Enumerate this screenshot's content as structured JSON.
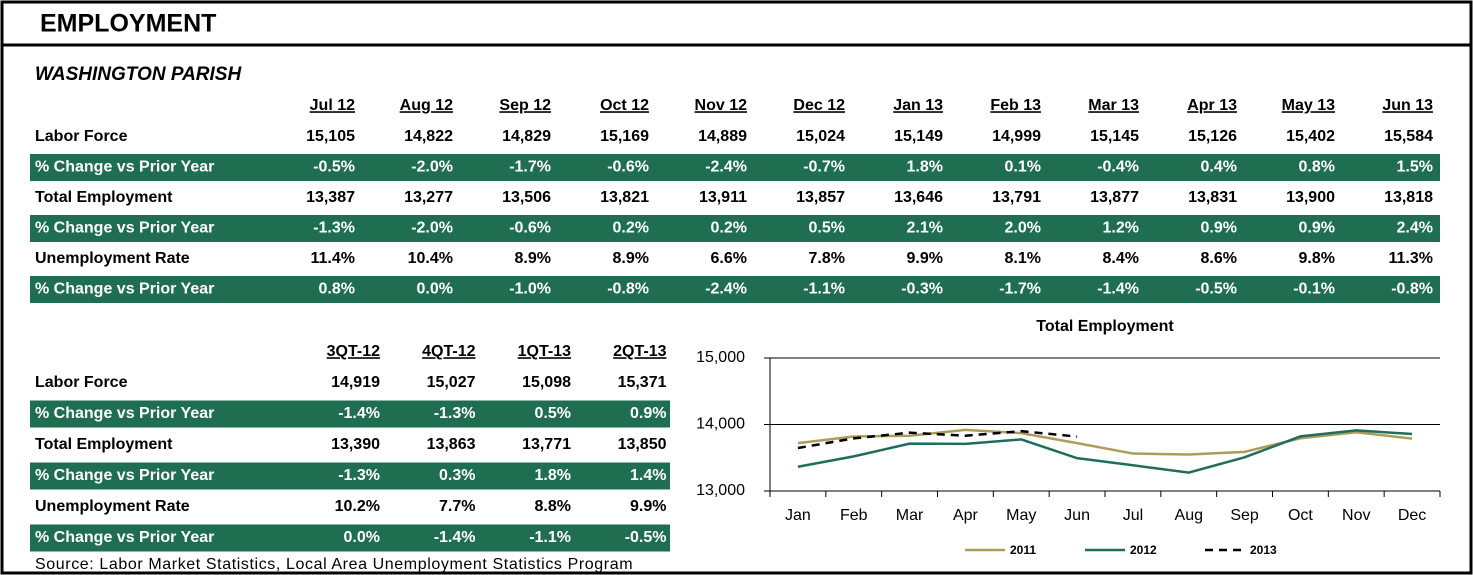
{
  "header": {
    "title": "EMPLOYMENT",
    "subtitle": "WASHINGTON PARISH"
  },
  "monthly_table": {
    "columns": [
      "Jul 12",
      "Aug 12",
      "Sep 12",
      "Oct 12",
      "Nov 12",
      "Dec 12",
      "Jan 13",
      "Feb 13",
      "Mar 13",
      "Apr 13",
      "May 13",
      "Jun 13"
    ],
    "rows": [
      [
        "Labor Force",
        "15,105",
        "14,822",
        "14,829",
        "15,169",
        "14,889",
        "15,024",
        "15,149",
        "14,999",
        "15,145",
        "15,126",
        "15,402",
        "15,584"
      ],
      [
        "% Change vs Prior Year",
        "-0.5%",
        "-2.0%",
        "-1.7%",
        "-0.6%",
        "-2.4%",
        "-0.7%",
        "1.8%",
        "0.1%",
        "-0.4%",
        "0.4%",
        "0.8%",
        "1.5%"
      ],
      [
        "Total Employment",
        "13,387",
        "13,277",
        "13,506",
        "13,821",
        "13,911",
        "13,857",
        "13,646",
        "13,791",
        "13,877",
        "13,831",
        "13,900",
        "13,818"
      ],
      [
        "% Change vs Prior Year",
        "-1.3%",
        "-2.0%",
        "-0.6%",
        "0.2%",
        "0.2%",
        "0.5%",
        "2.1%",
        "2.0%",
        "1.2%",
        "0.9%",
        "0.9%",
        "2.4%"
      ],
      [
        "Unemployment Rate",
        "11.4%",
        "10.4%",
        "8.9%",
        "8.9%",
        "6.6%",
        "7.8%",
        "9.9%",
        "8.1%",
        "8.4%",
        "8.6%",
        "9.8%",
        "11.3%"
      ],
      [
        "% Change vs Prior Year",
        "0.8%",
        "0.0%",
        "-1.0%",
        "-0.8%",
        "-2.4%",
        "-1.1%",
        "-0.3%",
        "-1.7%",
        "-1.4%",
        "-0.5%",
        "-0.1%",
        "-0.8%"
      ]
    ]
  },
  "quarterly_table": {
    "columns": [
      "3QT-12",
      "4QT-12",
      "1QT-13",
      "2QT-13"
    ],
    "rows": [
      [
        "Labor Force",
        "14,919",
        "15,027",
        "15,098",
        "15,371"
      ],
      [
        "% Change vs Prior Year",
        "-1.4%",
        "-1.3%",
        "0.5%",
        "0.9%"
      ],
      [
        "Total Employment",
        "13,390",
        "13,863",
        "13,771",
        "13,850"
      ],
      [
        "% Change vs Prior Year",
        "-1.3%",
        "0.3%",
        "1.8%",
        "1.4%"
      ],
      [
        "Unemployment Rate",
        "10.2%",
        "7.7%",
        "8.8%",
        "9.9%"
      ],
      [
        "% Change vs Prior Year",
        "0.0%",
        "-1.4%",
        "-1.1%",
        "-0.5%"
      ]
    ]
  },
  "source": "Source: Labor Market Statistics, Local Area Unemployment Statistics Program",
  "chart_data": {
    "type": "line",
    "title": "Total Employment",
    "categories": [
      "Jan",
      "Feb",
      "Mar",
      "Apr",
      "May",
      "Jun",
      "Jul",
      "Aug",
      "Sep",
      "Oct",
      "Nov",
      "Dec"
    ],
    "series": [
      {
        "name": "2011",
        "color": "#ad9d5a",
        "values": [
          13720,
          13820,
          13830,
          13920,
          13870,
          13720,
          13563,
          13548,
          13588,
          13793,
          13883,
          13788
        ]
      },
      {
        "name": "2012",
        "color": "#1f6e5c",
        "values": [
          13365,
          13521,
          13712,
          13708,
          13776,
          13494,
          13387,
          13277,
          13506,
          13821,
          13911,
          13857
        ]
      },
      {
        "name": "2013",
        "color": "#000000",
        "dashed": true,
        "values": [
          13646,
          13791,
          13877,
          13831,
          13900,
          13818,
          null,
          null,
          null,
          null,
          null,
          null
        ]
      }
    ],
    "ylim": [
      13000,
      15000
    ],
    "yticks": [
      {
        "value": 13000,
        "label": "13,000"
      },
      {
        "value": 14000,
        "label": "14,000"
      },
      {
        "value": 15000,
        "label": "15,000"
      }
    ],
    "grid": true,
    "legend": "bottom"
  }
}
